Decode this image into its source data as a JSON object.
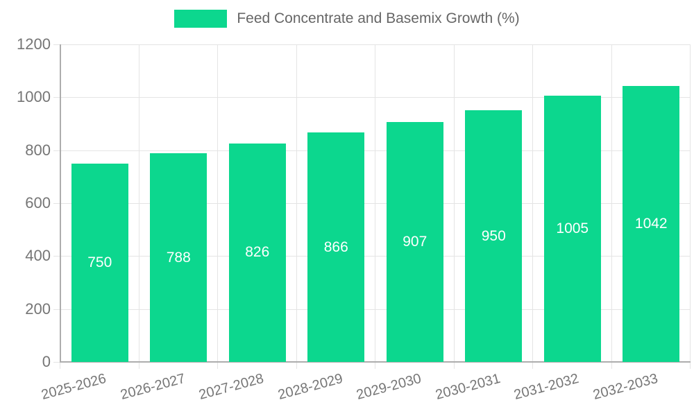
{
  "chart_data": {
    "type": "bar",
    "title": "Feed Concentrate and Basemix Growth (%)",
    "series_name": "Feed Concentrate and Basemix Growth (%)",
    "categories": [
      "2025-2026",
      "2026-2027",
      "2027-2028",
      "2028-2029",
      "2029-2030",
      "2030-2031",
      "2031-2032",
      "2032-2033"
    ],
    "values": [
      750,
      788,
      826,
      866,
      907,
      950,
      1005,
      1042
    ],
    "xlabel": "",
    "ylabel": "",
    "ylim": [
      0,
      1200
    ],
    "ytick_step": 200,
    "ytick_labels": [
      "0",
      "200",
      "400",
      "600",
      "800",
      "1000",
      "1200"
    ],
    "grid": "both",
    "legend_position": "top",
    "x_label_rotation_deg": -15,
    "value_labels_position": "center-inside",
    "colors": {
      "bar": "#0cd78e",
      "value_label": "#ffffff",
      "axis_text": "#757575",
      "legend_text": "#666666",
      "gridline": "#e4e4e4",
      "axis_line": "#adadad",
      "background": "#ffffff"
    }
  }
}
